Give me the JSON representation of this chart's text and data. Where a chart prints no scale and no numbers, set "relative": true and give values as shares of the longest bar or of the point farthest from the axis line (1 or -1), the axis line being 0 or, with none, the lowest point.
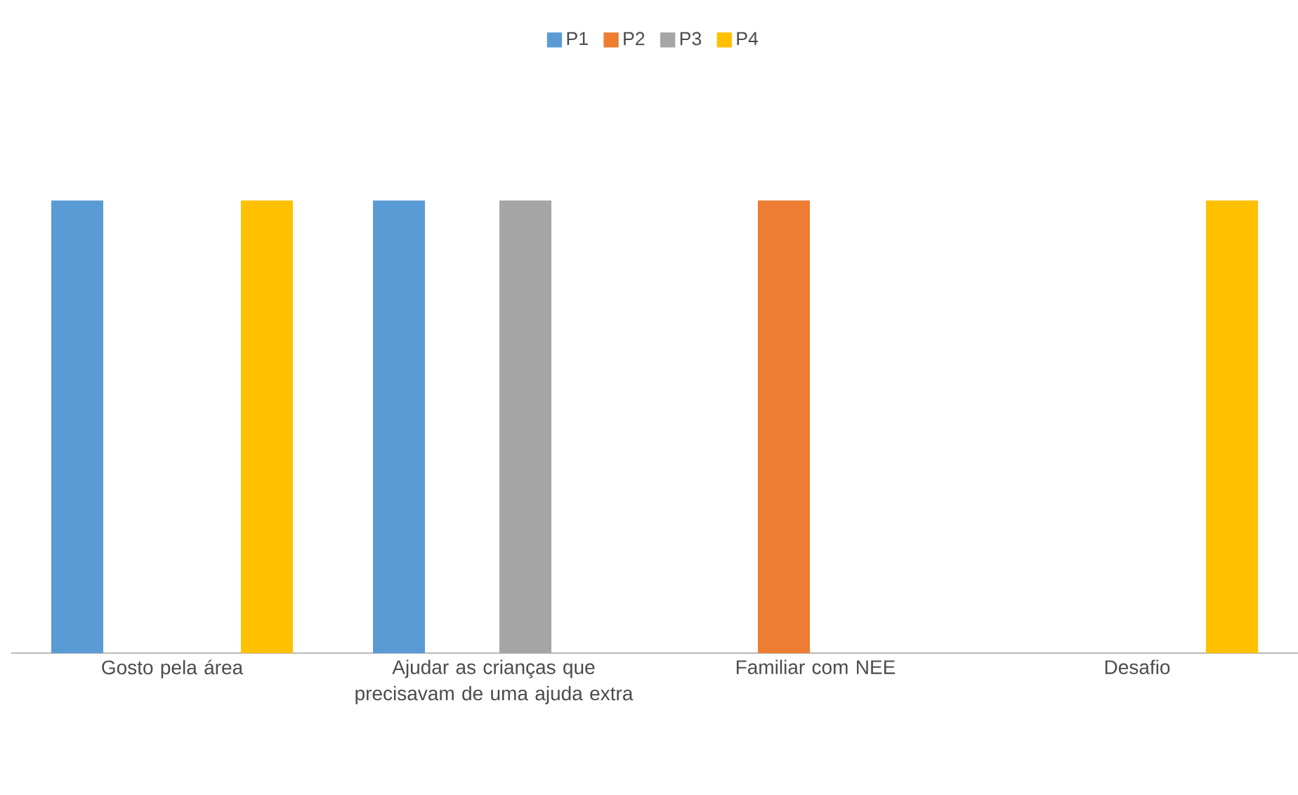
{
  "chart_data": {
    "type": "bar",
    "relative": true,
    "legend": "top",
    "categories": [
      "Gosto pela área",
      "Ajudar as crianças que precisavam de uma ajuda extra",
      "Familiar com NEE",
      "Desafio"
    ],
    "series": [
      {
        "name": "P1",
        "color": "#5b9bd5",
        "values": [
          1,
          1,
          null,
          null
        ]
      },
      {
        "name": "P2",
        "color": "#ed7d31",
        "values": [
          null,
          null,
          1,
          null
        ]
      },
      {
        "name": "P3",
        "color": "#a5a5a5",
        "values": [
          null,
          1,
          null,
          null
        ]
      },
      {
        "name": "P4",
        "color": "#ffc000",
        "values": [
          1,
          null,
          null,
          1
        ]
      }
    ]
  }
}
